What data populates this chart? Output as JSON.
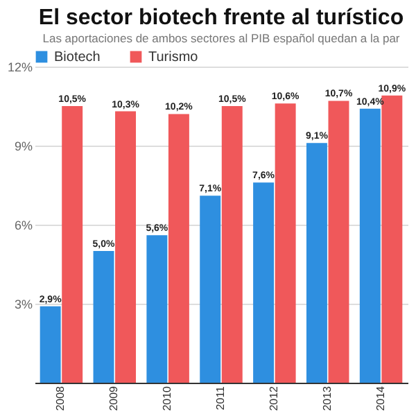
{
  "chart_data": {
    "type": "bar",
    "title": "El sector biotech frente al turístico",
    "subtitle": "Las aportaciones de ambos sectores al PIB español quedan a la par",
    "categories": [
      "2008",
      "2009",
      "2010",
      "2011",
      "2012",
      "2013",
      "2014"
    ],
    "series": [
      {
        "name": "Biotech",
        "color": "#2e8fe0",
        "values": [
          2.9,
          5.0,
          5.6,
          7.1,
          7.6,
          9.1,
          10.4
        ],
        "value_labels": [
          "2,9%",
          "5,0%",
          "5,6%",
          "7,1%",
          "7,6%",
          "9,1%",
          "10,4%"
        ]
      },
      {
        "name": "Turismo",
        "color": "#f0585a",
        "values": [
          10.5,
          10.3,
          10.2,
          10.5,
          10.6,
          10.7,
          10.9
        ],
        "value_labels": [
          "10,5%",
          "10,3%",
          "10,2%",
          "10,5%",
          "10,6%",
          "10,7%",
          "10,9%"
        ]
      }
    ],
    "ylim": [
      0,
      12
    ],
    "yticks": [
      {
        "value": 3,
        "label": "3%"
      },
      {
        "value": 6,
        "label": "6%"
      },
      {
        "value": 9,
        "label": "9%"
      },
      {
        "value": 12,
        "label": "12%"
      }
    ],
    "grid": "y",
    "legend": "top"
  }
}
